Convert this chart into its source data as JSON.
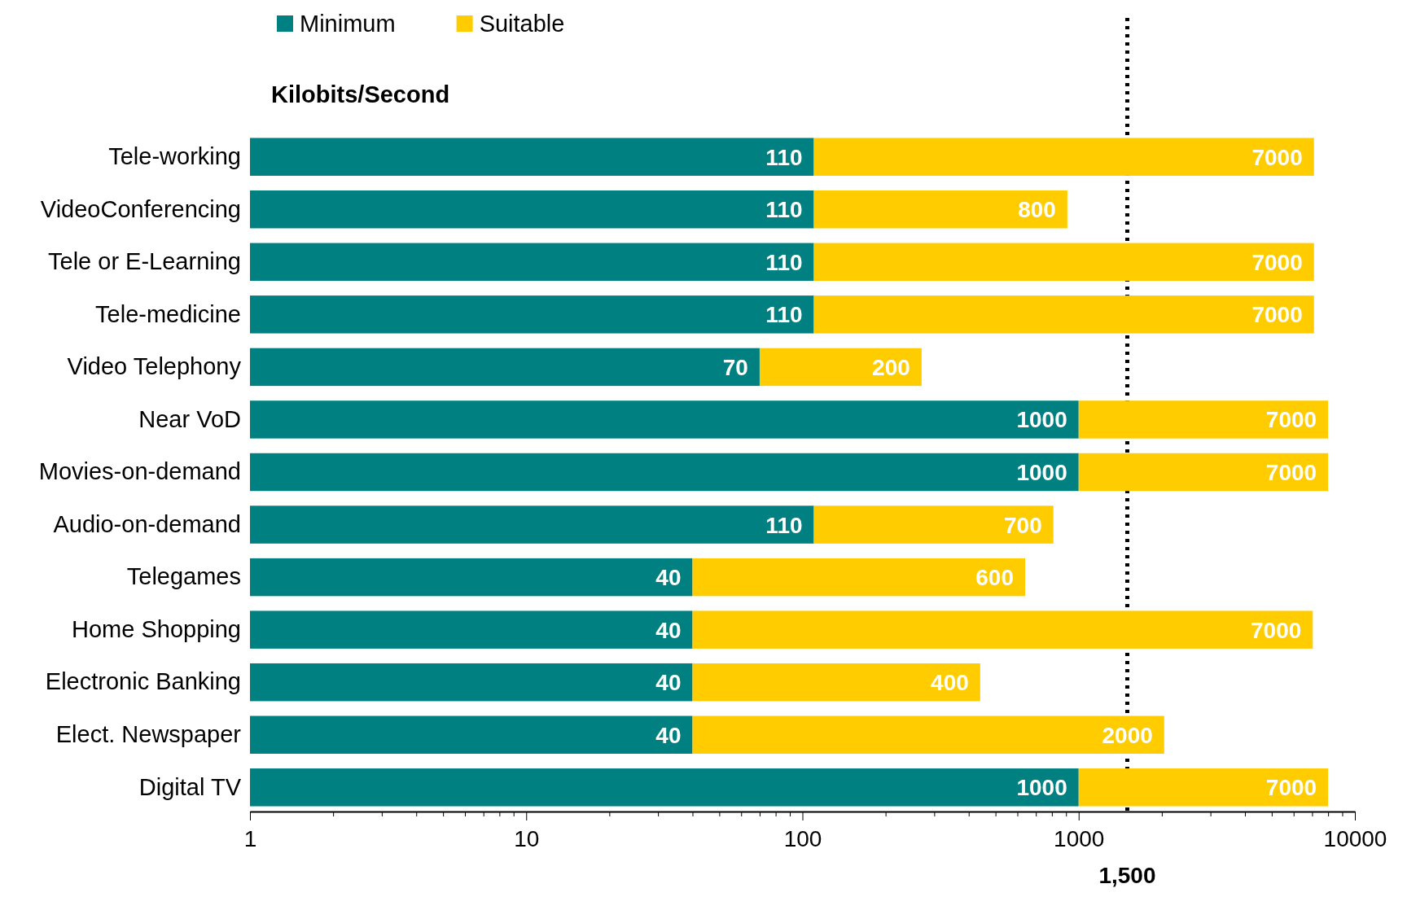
{
  "chart_data": {
    "type": "bar",
    "orientation": "horizontal",
    "stacked": true,
    "log": "x",
    "title": "Kilobits/Second",
    "categories": [
      "Tele-working",
      "VideoConferencing",
      "Tele or E-Learning",
      "Tele-medicine",
      "Video Telephony",
      "Near VoD",
      "Movies-on-demand",
      "Audio-on-demand",
      "Telegames",
      "Home Shopping",
      "Electronic Banking",
      "Elect. Newspaper",
      "Digital TV"
    ],
    "series": [
      {
        "name": "Minimum",
        "color": "#008080",
        "values": [
          110,
          110,
          110,
          110,
          70,
          1000,
          1000,
          110,
          40,
          40,
          40,
          40,
          1000
        ]
      },
      {
        "name": "Suitable",
        "color": "#ffcc00",
        "values": [
          7000,
          800,
          7000,
          7000,
          200,
          7000,
          7000,
          700,
          600,
          7000,
          400,
          2000,
          7000
        ]
      }
    ],
    "xlim": [
      1,
      10000
    ],
    "xticks": [
      1,
      {
        "value": 2,
        "label": null
      },
      {
        "value": 3,
        "label": null
      },
      {
        "value": 4,
        "label": null
      },
      {
        "value": 5,
        "label": null
      },
      {
        "value": 6,
        "label": null
      },
      {
        "value": 7,
        "label": null
      },
      {
        "value": 8,
        "label": null
      },
      {
        "value": 9,
        "label": null
      },
      10,
      {
        "value": 20,
        "label": null
      },
      {
        "value": 30,
        "label": null
      },
      {
        "value": 40,
        "label": null
      },
      {
        "value": 50,
        "label": null
      },
      {
        "value": 60,
        "label": null
      },
      {
        "value": 70,
        "label": null
      },
      {
        "value": 80,
        "label": null
      },
      {
        "value": 90,
        "label": null
      },
      100,
      {
        "value": 200,
        "label": null
      },
      {
        "value": 300,
        "label": null
      },
      {
        "value": 400,
        "label": null
      },
      {
        "value": 500,
        "label": null
      },
      {
        "value": 600,
        "label": null
      },
      {
        "value": 700,
        "label": null
      },
      {
        "value": 800,
        "label": null
      },
      {
        "value": 900,
        "label": null
      },
      1000,
      {
        "value": 2000,
        "label": null
      },
      {
        "value": 3000,
        "label": null
      },
      {
        "value": 4000,
        "label": null
      },
      {
        "value": 5000,
        "label": null
      },
      {
        "value": 6000,
        "label": null
      },
      {
        "value": 7000,
        "label": null
      },
      {
        "value": 8000,
        "label": null
      },
      {
        "value": 9000,
        "label": null
      },
      10000
    ],
    "ref_lines": [
      {
        "axis": "x",
        "value": 1500,
        "label": "1,500",
        "line_style": "dotted",
        "color": "#000000"
      }
    ],
    "data_labels": true,
    "legend": "top left",
    "grid": false
  }
}
